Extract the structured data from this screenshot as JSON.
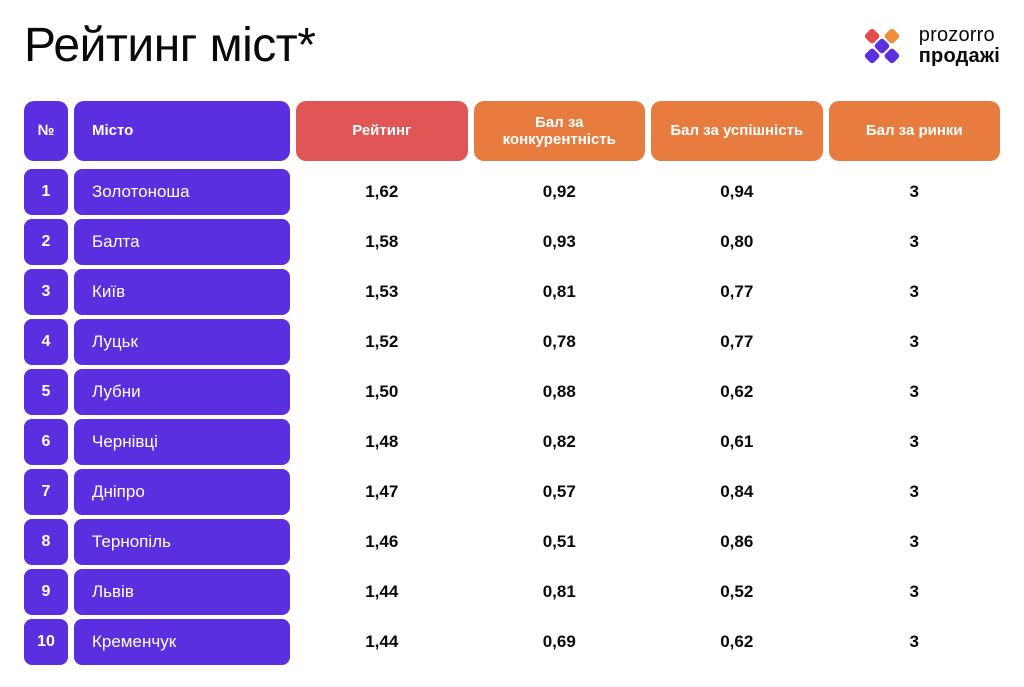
{
  "title": "Рейтинг міст*",
  "logo": {
    "line1": "prozorro",
    "line2": "продажі"
  },
  "colors": {
    "purple": "#5a2fe0",
    "red": "#e05555",
    "orange": "#e87b3e",
    "text": "#0a0a0a",
    "bg": "#ffffff",
    "logo_red": "#e24c4c",
    "logo_orange": "#f08c3a",
    "logo_purple": "#5a2fe0"
  },
  "table": {
    "headers": {
      "num": "№",
      "city": "Місто",
      "rating": "Рейтинг",
      "competition": "Бал за конкурентність",
      "success": "Бал за успішність",
      "markets": "Бал за ринки"
    },
    "header_colors": [
      "purple",
      "purple",
      "red",
      "orange",
      "orange",
      "orange"
    ],
    "rows": [
      {
        "num": "1",
        "city": "Золотоноша",
        "rating": "1,62",
        "competition": "0,92",
        "success": "0,94",
        "markets": "3"
      },
      {
        "num": "2",
        "city": "Балта",
        "rating": "1,58",
        "competition": "0,93",
        "success": "0,80",
        "markets": "3"
      },
      {
        "num": "3",
        "city": "Київ",
        "rating": "1,53",
        "competition": "0,81",
        "success": "0,77",
        "markets": "3"
      },
      {
        "num": "4",
        "city": "Луцьк",
        "rating": "1,52",
        "competition": "0,78",
        "success": "0,77",
        "markets": "3"
      },
      {
        "num": "5",
        "city": "Лубни",
        "rating": "1,50",
        "competition": "0,88",
        "success": "0,62",
        "markets": "3"
      },
      {
        "num": "6",
        "city": "Чернівці",
        "rating": "1,48",
        "competition": "0,82",
        "success": "0,61",
        "markets": "3"
      },
      {
        "num": "7",
        "city": "Дніпро",
        "rating": "1,47",
        "competition": "0,57",
        "success": "0,84",
        "markets": "3"
      },
      {
        "num": "8",
        "city": "Тернопіль",
        "rating": "1,46",
        "competition": "0,51",
        "success": "0,86",
        "markets": "3"
      },
      {
        "num": "9",
        "city": "Львів",
        "rating": "1,44",
        "competition": "0,81",
        "success": "0,52",
        "markets": "3"
      },
      {
        "num": "10",
        "city": "Кременчук",
        "rating": "1,44",
        "competition": "0,69",
        "success": "0,62",
        "markets": "3"
      }
    ]
  }
}
